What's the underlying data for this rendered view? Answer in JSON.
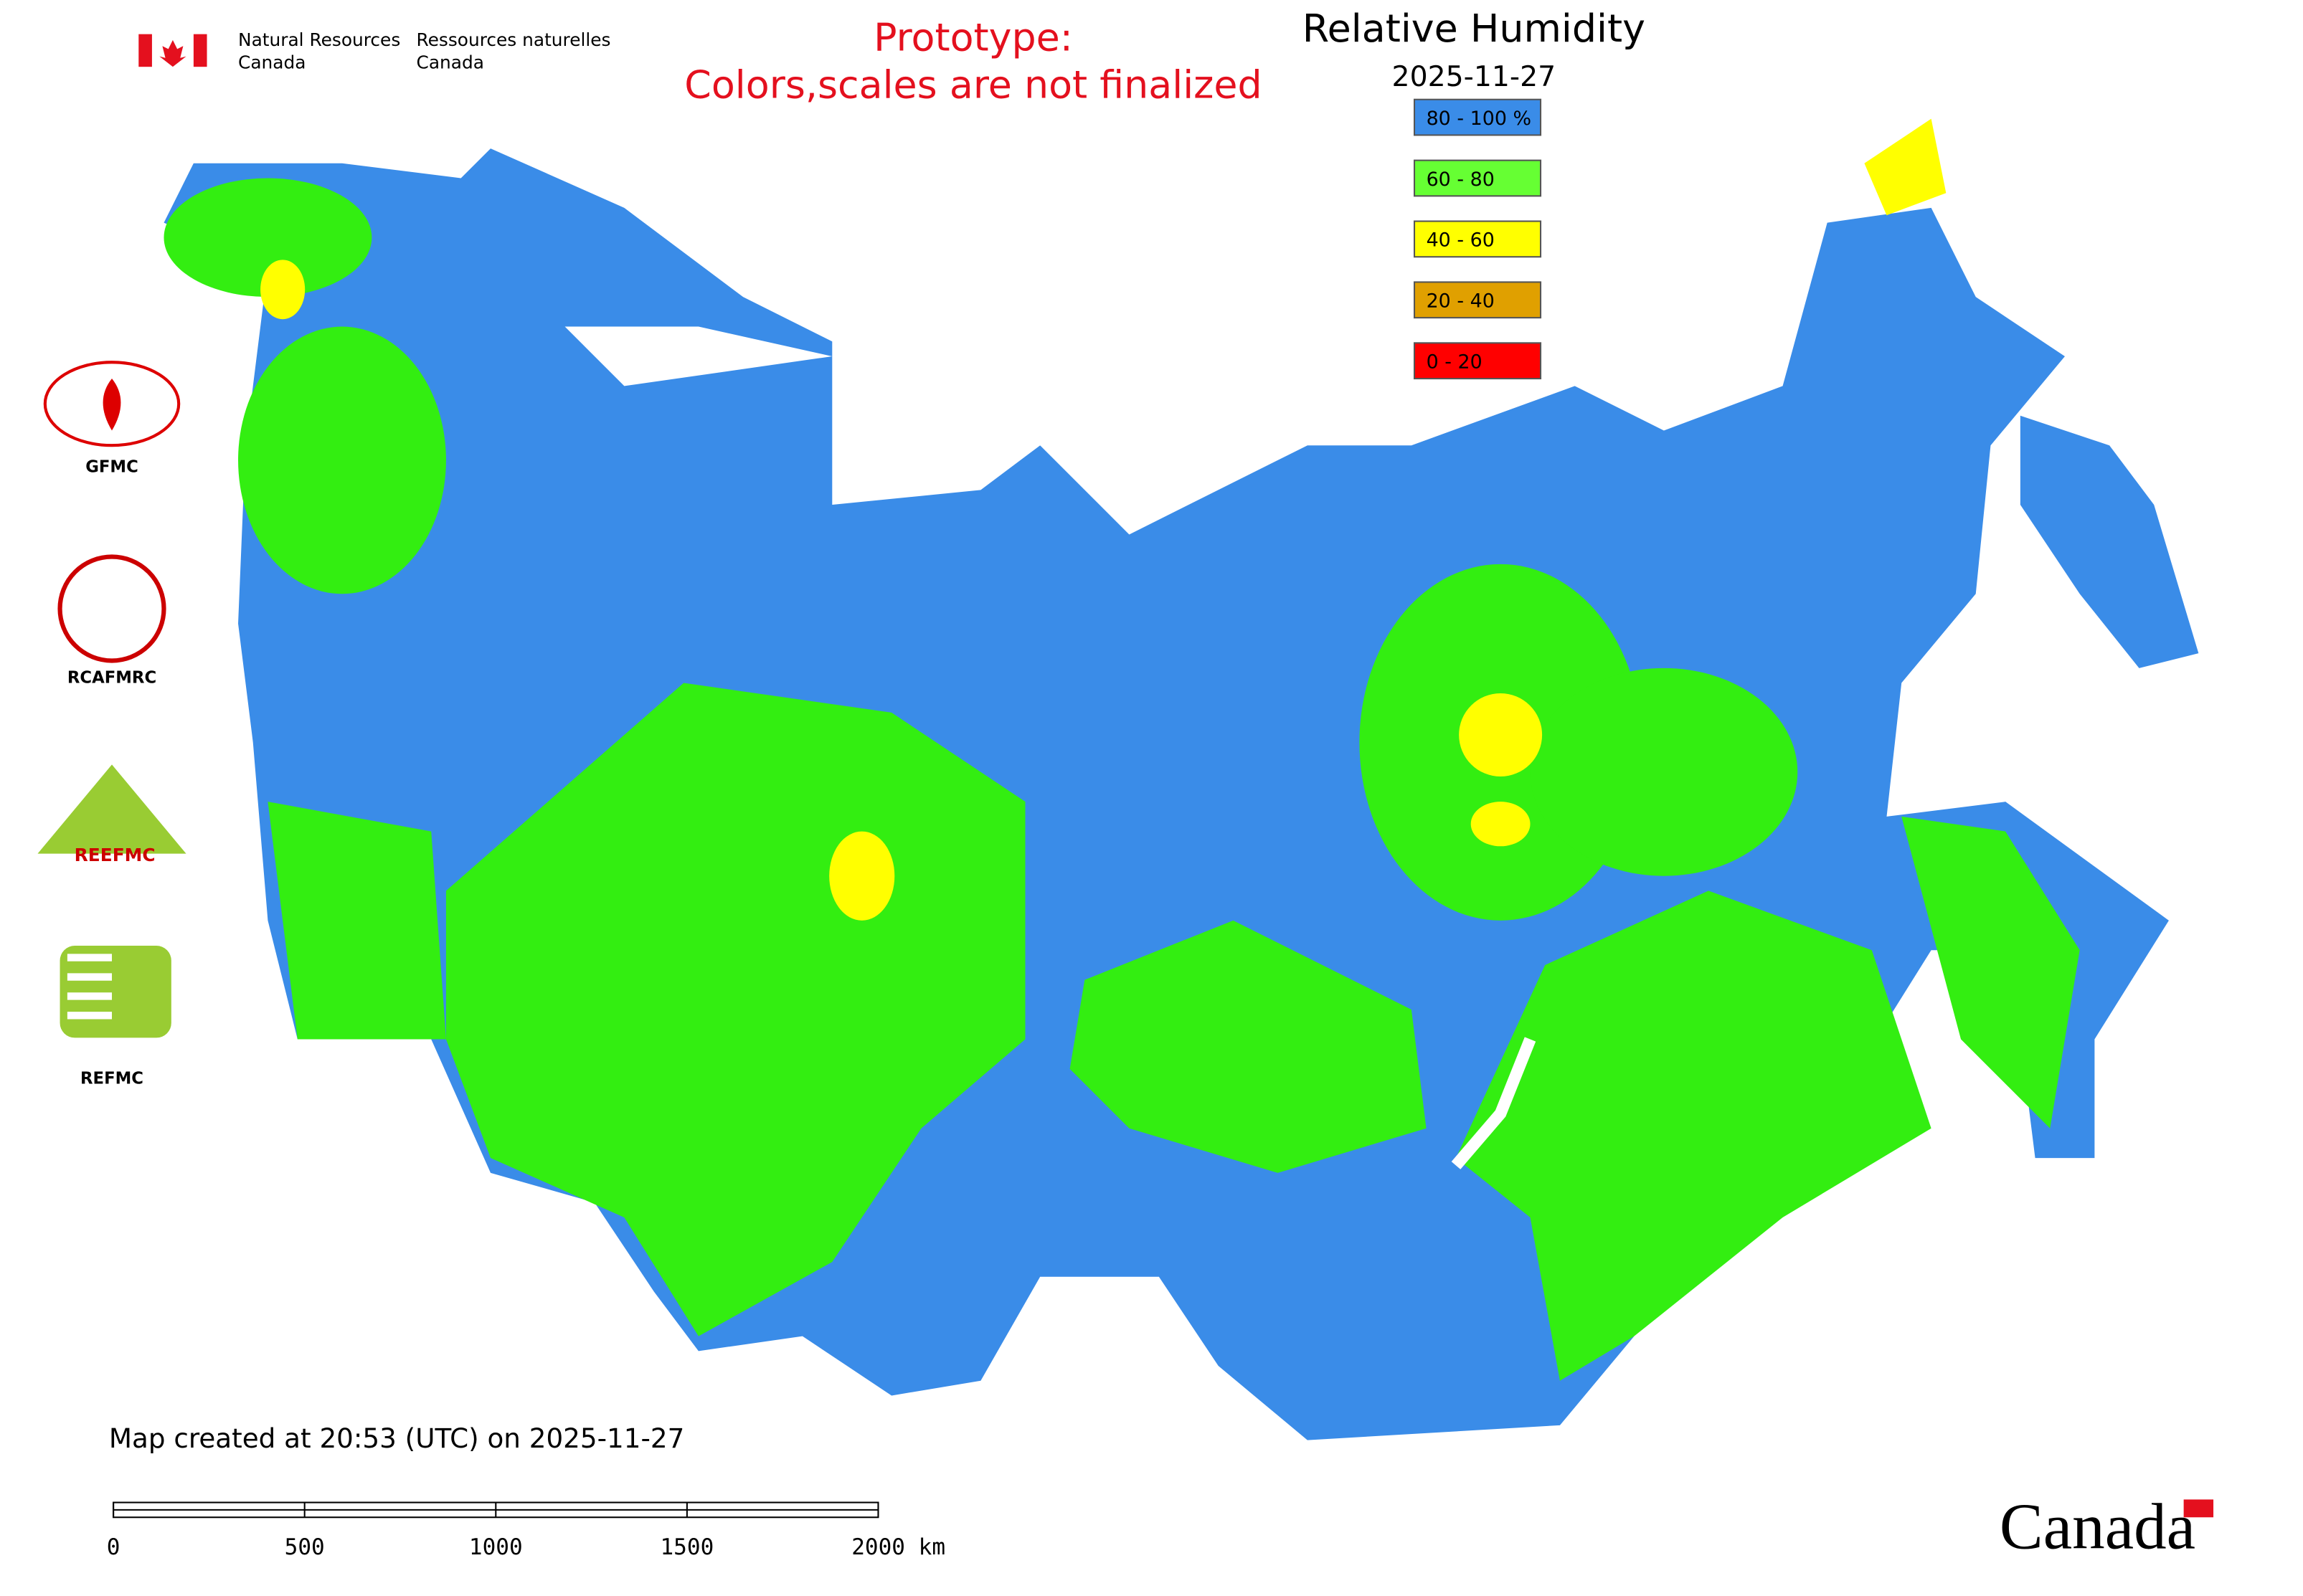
{
  "header": {
    "agency_en": [
      "Natural Resources",
      "Canada"
    ],
    "agency_fr": [
      "Ressources naturelles",
      "Canada"
    ],
    "notice": [
      "Prototype:",
      "Colors,scales are not finalized"
    ],
    "title": "Relative Humidity",
    "date": "2025-11-27"
  },
  "legend": {
    "items": [
      {
        "label": "80 - 100 %",
        "color": "#3a8ce8"
      },
      {
        "label": "60 - 80",
        "color": "#66ff33"
      },
      {
        "label": "40 - 60",
        "color": "#ffff00"
      },
      {
        "label": "20 - 40",
        "color": "#e0a000"
      },
      {
        "label": "0 - 20",
        "color": "#ff0000"
      }
    ]
  },
  "logos": [
    {
      "label": "GFMC"
    },
    {
      "label": "RCAFMRC"
    },
    {
      "label": "REEFMC"
    },
    {
      "label": "REFMC"
    }
  ],
  "footer": {
    "created": "Map created at 20:53 (UTC) on 2025-11-27",
    "scale_labels": [
      "0",
      "500",
      "1000",
      "1500",
      "2000 km"
    ],
    "wordmark": "Canada"
  }
}
